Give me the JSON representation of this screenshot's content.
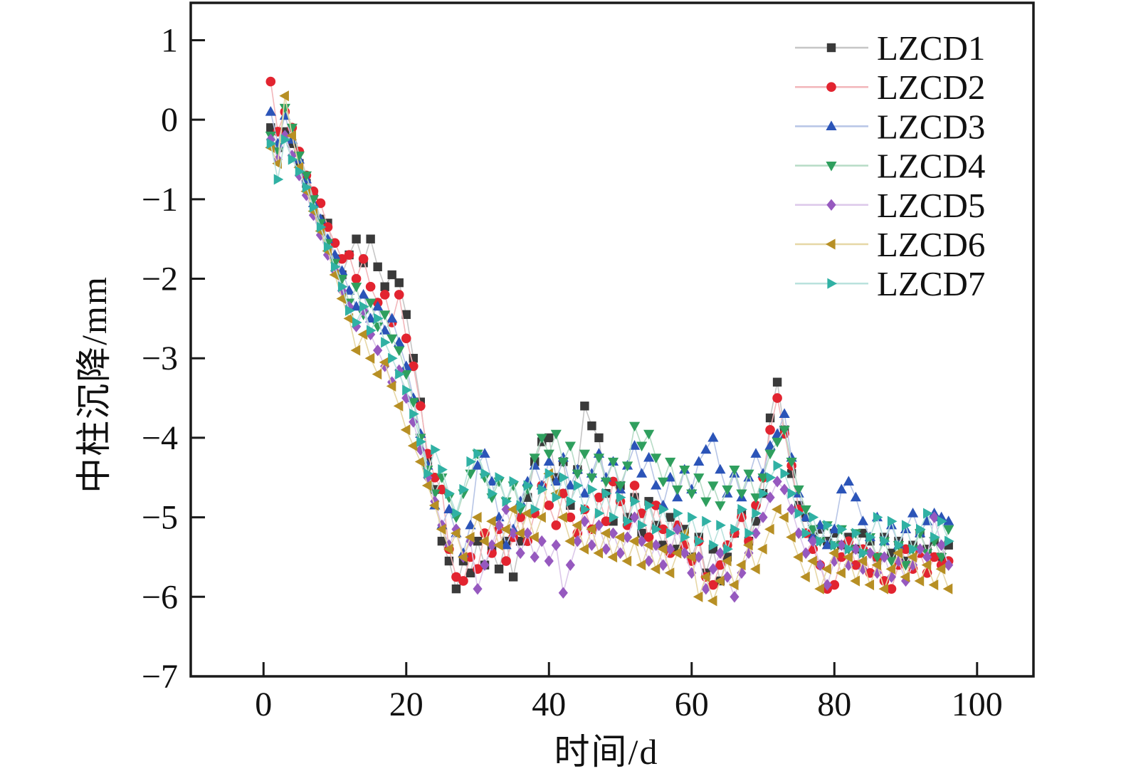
{
  "chart_data": {
    "type": "line",
    "title": "",
    "xlabel": "时间/d",
    "ylabel": "中柱沉降/mm",
    "xlim": [
      -10.2,
      107.9
    ],
    "ylim": [
      -7,
      1.47
    ],
    "xticks": [
      0,
      20,
      40,
      60,
      80,
      100
    ],
    "yticks": [
      1,
      0,
      -1,
      -2,
      -3,
      -4,
      -5,
      -6,
      -7
    ],
    "grid": false,
    "legend_position": "top-right-inside",
    "axis_color": "#1a1a1a",
    "start_day": 1,
    "day_step": 1,
    "series": [
      {
        "name": "LZCD1",
        "marker": "square",
        "color": "#3a3a3a",
        "line_color": "#c6c6c6",
        "values": [
          -0.1,
          -0.35,
          -0.15,
          -0.3,
          -0.55,
          -0.8,
          -0.95,
          -1.25,
          -1.3,
          -1.75,
          -1.95,
          -1.7,
          -1.5,
          -1.8,
          -1.5,
          -1.85,
          -2.1,
          -1.95,
          -2.05,
          -2.45,
          -3.0,
          -3.55,
          -4.3,
          -4.65,
          -5.3,
          -5.55,
          -5.9,
          -5.55,
          -5.7,
          -5.3,
          -5.6,
          -5.4,
          -5.65,
          -5.3,
          -5.75,
          -5.3,
          -4.75,
          -4.3,
          -4.05,
          -4.0,
          -4.5,
          -4.3,
          -4.85,
          -4.4,
          -3.6,
          -3.85,
          -4.0,
          -4.7,
          -5.05,
          -4.6,
          -5.0,
          -4.75,
          -5.2,
          -4.8,
          -5.1,
          -5.35,
          -5.0,
          -5.4,
          -5.15,
          -5.5,
          -5.25,
          -5.7,
          -5.4,
          -5.8,
          -5.5,
          -5.2,
          -4.95,
          -5.3,
          -5.05,
          -4.7,
          -3.75,
          -3.3,
          -3.9,
          -4.45,
          -4.85,
          -5.0,
          -5.25,
          -5.15,
          -5.3,
          -5.2,
          -5.35,
          -5.25,
          -5.4,
          -5.2,
          -5.3,
          -5.5,
          -5.25,
          -5.45,
          -5.3,
          -5.55,
          -5.35,
          -5.2,
          -5.4,
          -5.3,
          -5.5,
          -5.35
        ]
      },
      {
        "name": "LZCD2",
        "marker": "circle",
        "color": "#e22430",
        "line_color": "#f2b6ba",
        "values": [
          0.48,
          -0.15,
          0.1,
          -0.1,
          -0.4,
          -0.7,
          -0.9,
          -1.05,
          -1.35,
          -1.55,
          -1.75,
          -1.7,
          -2.0,
          -1.75,
          -2.1,
          -2.3,
          -2.2,
          -2.55,
          -2.2,
          -2.75,
          -3.1,
          -3.6,
          -4.2,
          -4.5,
          -4.65,
          -5.4,
          -5.75,
          -5.8,
          -5.5,
          -5.65,
          -5.2,
          -5.45,
          -5.15,
          -5.55,
          -5.25,
          -5.0,
          -5.3,
          -4.95,
          -4.6,
          -4.85,
          -5.1,
          -4.7,
          -5.0,
          -5.2,
          -4.9,
          -5.15,
          -4.75,
          -5.05,
          -4.55,
          -4.8,
          -5.1,
          -4.6,
          -4.95,
          -5.25,
          -4.85,
          -5.15,
          -5.45,
          -5.1,
          -5.35,
          -5.55,
          -5.3,
          -5.75,
          -5.85,
          -5.6,
          -5.35,
          -5.2,
          -5.0,
          -5.3,
          -4.85,
          -4.5,
          -3.9,
          -3.5,
          -3.95,
          -4.35,
          -4.9,
          -5.2,
          -5.4,
          -5.6,
          -5.9,
          -5.85,
          -5.5,
          -5.3,
          -5.6,
          -5.4,
          -5.7,
          -5.5,
          -5.8,
          -5.9,
          -5.6,
          -5.4,
          -5.65,
          -5.45,
          -5.7,
          -5.5,
          -5.6,
          -5.55
        ]
      },
      {
        "name": "LZCD3",
        "marker": "triangle-up",
        "color": "#2b54b8",
        "line_color": "#b7c5e6",
        "values": [
          0.1,
          -0.3,
          0.05,
          -0.25,
          -0.5,
          -0.75,
          -1.05,
          -1.25,
          -1.5,
          -1.7,
          -1.9,
          -2.15,
          -2.35,
          -2.2,
          -2.5,
          -2.35,
          -2.65,
          -2.5,
          -2.8,
          -3.1,
          -3.5,
          -3.95,
          -4.35,
          -4.85,
          -5.1,
          -4.9,
          -5.2,
          -5.45,
          -5.1,
          -4.35,
          -4.2,
          -4.55,
          -5.0,
          -5.35,
          -5.15,
          -4.8,
          -4.55,
          -4.35,
          -4.6,
          -4.3,
          -4.55,
          -4.25,
          -4.6,
          -4.4,
          -4.7,
          -4.45,
          -4.2,
          -4.5,
          -4.3,
          -4.65,
          -4.35,
          -4.1,
          -4.45,
          -4.25,
          -4.6,
          -4.85,
          -4.5,
          -4.75,
          -4.4,
          -4.65,
          -4.3,
          -4.15,
          -4.0,
          -4.4,
          -4.7,
          -4.45,
          -4.75,
          -4.5,
          -4.2,
          -4.45,
          -4.1,
          -3.95,
          -3.7,
          -4.25,
          -4.7,
          -5.0,
          -5.25,
          -5.1,
          -5.35,
          -5.15,
          -4.65,
          -4.55,
          -4.75,
          -5.05,
          -5.25,
          -5.0,
          -5.3,
          -5.1,
          -5.35,
          -5.15,
          -4.95,
          -5.2,
          -5.05,
          -4.95,
          -5.0,
          -5.05
        ]
      },
      {
        "name": "LZCD4",
        "marker": "triangle-down",
        "color": "#2f9f5e",
        "line_color": "#b7dcc6",
        "values": [
          -0.2,
          -0.4,
          0.15,
          -0.1,
          -0.45,
          -0.7,
          -1.0,
          -1.3,
          -1.55,
          -1.8,
          -2.0,
          -2.3,
          -2.1,
          -2.45,
          -2.3,
          -2.6,
          -2.45,
          -2.75,
          -2.9,
          -3.2,
          -3.55,
          -4.0,
          -4.4,
          -4.7,
          -4.5,
          -4.75,
          -5.0,
          -4.7,
          -4.45,
          -4.2,
          -4.5,
          -4.75,
          -4.55,
          -4.8,
          -4.6,
          -4.9,
          -4.65,
          -4.25,
          -4.0,
          -4.2,
          -3.95,
          -4.3,
          -4.1,
          -4.45,
          -4.2,
          -4.5,
          -4.25,
          -4.55,
          -4.3,
          -4.6,
          -4.35,
          -3.85,
          -4.1,
          -3.95,
          -4.25,
          -4.55,
          -4.3,
          -4.65,
          -4.4,
          -4.7,
          -4.5,
          -4.8,
          -4.6,
          -4.85,
          -4.65,
          -4.4,
          -4.7,
          -4.45,
          -4.75,
          -4.5,
          -4.2,
          -4.05,
          -3.9,
          -4.3,
          -4.65,
          -4.9,
          -5.15,
          -5.3,
          -5.1,
          -5.35,
          -5.15,
          -5.4,
          -5.2,
          -5.45,
          -5.25,
          -5.5,
          -5.3,
          -5.55,
          -5.35,
          -5.6,
          -5.4,
          -5.2,
          -5.45,
          -5.3,
          -5.5,
          -5.15
        ]
      },
      {
        "name": "LZCD5",
        "marker": "diamond",
        "color": "#9659bf",
        "line_color": "#dcc8ea",
        "values": [
          -0.25,
          -0.5,
          -0.2,
          -0.45,
          -0.7,
          -0.95,
          -1.2,
          -1.45,
          -1.7,
          -1.9,
          -2.15,
          -2.35,
          -2.6,
          -2.4,
          -2.7,
          -2.9,
          -3.1,
          -3.3,
          -3.15,
          -3.5,
          -3.8,
          -4.15,
          -4.5,
          -4.8,
          -5.1,
          -5.35,
          -5.15,
          -5.5,
          -5.3,
          -5.9,
          -5.6,
          -5.35,
          -5.1,
          -4.9,
          -5.2,
          -5.45,
          -5.2,
          -5.5,
          -5.3,
          -5.55,
          -5.35,
          -5.95,
          -5.6,
          -5.3,
          -5.05,
          -5.35,
          -5.1,
          -5.4,
          -5.2,
          -5.45,
          -5.25,
          -5.0,
          -5.3,
          -5.55,
          -5.35,
          -5.6,
          -5.4,
          -5.15,
          -5.45,
          -5.7,
          -5.5,
          -5.9,
          -5.65,
          -5.45,
          -5.75,
          -6.0,
          -5.7,
          -5.45,
          -5.2,
          -5.0,
          -4.75,
          -4.55,
          -4.65,
          -4.9,
          -5.2,
          -5.45,
          -5.3,
          -5.6,
          -5.85,
          -5.55,
          -5.35,
          -5.6,
          -5.4,
          -5.65,
          -5.45,
          -5.7,
          -5.5,
          -5.75,
          -5.55,
          -5.8,
          -5.6,
          -5.4,
          -5.5,
          -5.0,
          -5.35,
          -5.6
        ]
      },
      {
        "name": "LZCD6",
        "marker": "triangle-left",
        "color": "#b78f24",
        "line_color": "#e6d7a6",
        "values": [
          -0.35,
          -0.55,
          0.3,
          -0.2,
          -0.6,
          -0.9,
          -1.15,
          -1.4,
          -1.65,
          -1.95,
          -2.25,
          -2.5,
          -2.9,
          -2.7,
          -3.0,
          -3.2,
          -3.05,
          -3.35,
          -3.6,
          -3.9,
          -4.1,
          -4.3,
          -4.6,
          -4.85,
          -5.15,
          -5.4,
          -5.2,
          -5.5,
          -5.25,
          -5.0,
          -5.3,
          -5.05,
          -5.35,
          -5.15,
          -4.9,
          -5.2,
          -4.95,
          -5.25,
          -5.0,
          -4.45,
          -4.7,
          -5.0,
          -5.3,
          -5.1,
          -5.4,
          -5.15,
          -5.45,
          -5.2,
          -5.5,
          -5.25,
          -5.55,
          -5.3,
          -5.6,
          -5.35,
          -5.65,
          -5.4,
          -5.7,
          -5.45,
          -5.2,
          -5.5,
          -6.0,
          -5.75,
          -6.05,
          -5.8,
          -5.55,
          -5.85,
          -5.6,
          -5.35,
          -5.65,
          -5.4,
          -5.15,
          -4.9,
          -5.0,
          -5.25,
          -5.5,
          -5.75,
          -5.55,
          -5.9,
          -5.65,
          -5.45,
          -5.7,
          -5.5,
          -5.8,
          -5.55,
          -5.85,
          -5.6,
          -5.9,
          -5.65,
          -5.45,
          -5.75,
          -5.5,
          -5.8,
          -5.6,
          -5.85,
          -5.65,
          -5.9
        ]
      },
      {
        "name": "LZCD7",
        "marker": "triangle-right",
        "color": "#30b1a4",
        "line_color": "#b9e2dd",
        "values": [
          -0.3,
          -0.75,
          -0.25,
          -0.5,
          -0.65,
          -0.85,
          -1.1,
          -1.35,
          -1.6,
          -1.85,
          -2.1,
          -2.4,
          -2.55,
          -2.35,
          -2.65,
          -2.5,
          -2.8,
          -3.0,
          -3.2,
          -3.4,
          -3.7,
          -4.05,
          -4.45,
          -4.15,
          -4.4,
          -4.7,
          -4.95,
          -4.65,
          -4.3,
          -4.2,
          -4.45,
          -4.7,
          -4.5,
          -4.8,
          -4.55,
          -4.85,
          -4.6,
          -4.9,
          -4.65,
          -4.45,
          -4.75,
          -4.5,
          -4.8,
          -4.6,
          -4.9,
          -4.65,
          -4.95,
          -4.7,
          -5.0,
          -4.75,
          -5.05,
          -4.8,
          -5.1,
          -4.85,
          -5.15,
          -4.9,
          -5.2,
          -4.95,
          -5.25,
          -5.0,
          -5.3,
          -5.05,
          -5.35,
          -5.1,
          -5.4,
          -5.15,
          -4.9,
          -5.2,
          -4.95,
          -4.7,
          -4.5,
          -4.35,
          -4.45,
          -4.7,
          -4.95,
          -5.2,
          -5.0,
          -5.3,
          -5.1,
          -5.35,
          -5.15,
          -5.4,
          -5.2,
          -5.45,
          -5.25,
          -5.0,
          -5.3,
          -5.05,
          -5.35,
          -5.1,
          -5.4,
          -5.15,
          -4.95,
          -5.25,
          -5.05,
          -5.3
        ]
      }
    ]
  }
}
